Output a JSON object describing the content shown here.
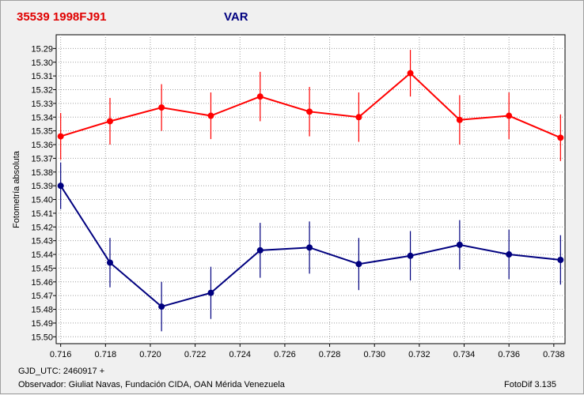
{
  "chart_data": {
    "type": "line",
    "title": "35539 1998FJ91",
    "subtitle": "VAR",
    "xlabel": "",
    "ylabel": "Fotometría absoluta",
    "xlim": [
      0.7158,
      0.7385
    ],
    "ylim": [
      15.505,
      15.28
    ],
    "y_inverted": true,
    "grid": true,
    "x_ticks": [
      "0.716",
      "0.718",
      "0.720",
      "0.722",
      "0.724",
      "0.726",
      "0.728",
      "0.730",
      "0.732",
      "0.734",
      "0.736",
      "0.738"
    ],
    "y_ticks": [
      "15.29",
      "15.30",
      "15.31",
      "15.32",
      "15.33",
      "15.34",
      "15.35",
      "15.36",
      "15.37",
      "15.38",
      "15.39",
      "15.40",
      "15.41",
      "15.42",
      "15.43",
      "15.44",
      "15.45",
      "15.46",
      "15.47",
      "15.48",
      "15.49",
      "15.50"
    ],
    "x": [
      0.716,
      0.7182,
      0.7205,
      0.7227,
      0.7249,
      0.7271,
      0.7293,
      0.7316,
      0.7338,
      0.736,
      0.7383
    ],
    "series": [
      {
        "color": "#ff0000",
        "values": [
          15.354,
          15.343,
          15.333,
          15.339,
          15.325,
          15.336,
          15.34,
          15.308,
          15.342,
          15.339,
          15.355
        ],
        "errors": [
          0.017,
          0.017,
          0.017,
          0.017,
          0.018,
          0.018,
          0.018,
          0.017,
          0.018,
          0.017,
          0.017
        ]
      },
      {
        "color": "#00007f",
        "values": [
          15.39,
          15.446,
          15.478,
          15.468,
          15.437,
          15.435,
          15.447,
          15.441,
          15.433,
          15.44,
          15.444
        ],
        "errors": [
          0.017,
          0.018,
          0.018,
          0.019,
          0.02,
          0.019,
          0.019,
          0.018,
          0.018,
          0.018,
          0.018
        ]
      }
    ]
  },
  "footer": {
    "gjd": "GJD_UTC: 2460917 +",
    "observer": "Observador: Giuliat Navas, Fundación CIDA, OAN Mérida Venezuela",
    "software": "FotoDif 3.135"
  }
}
